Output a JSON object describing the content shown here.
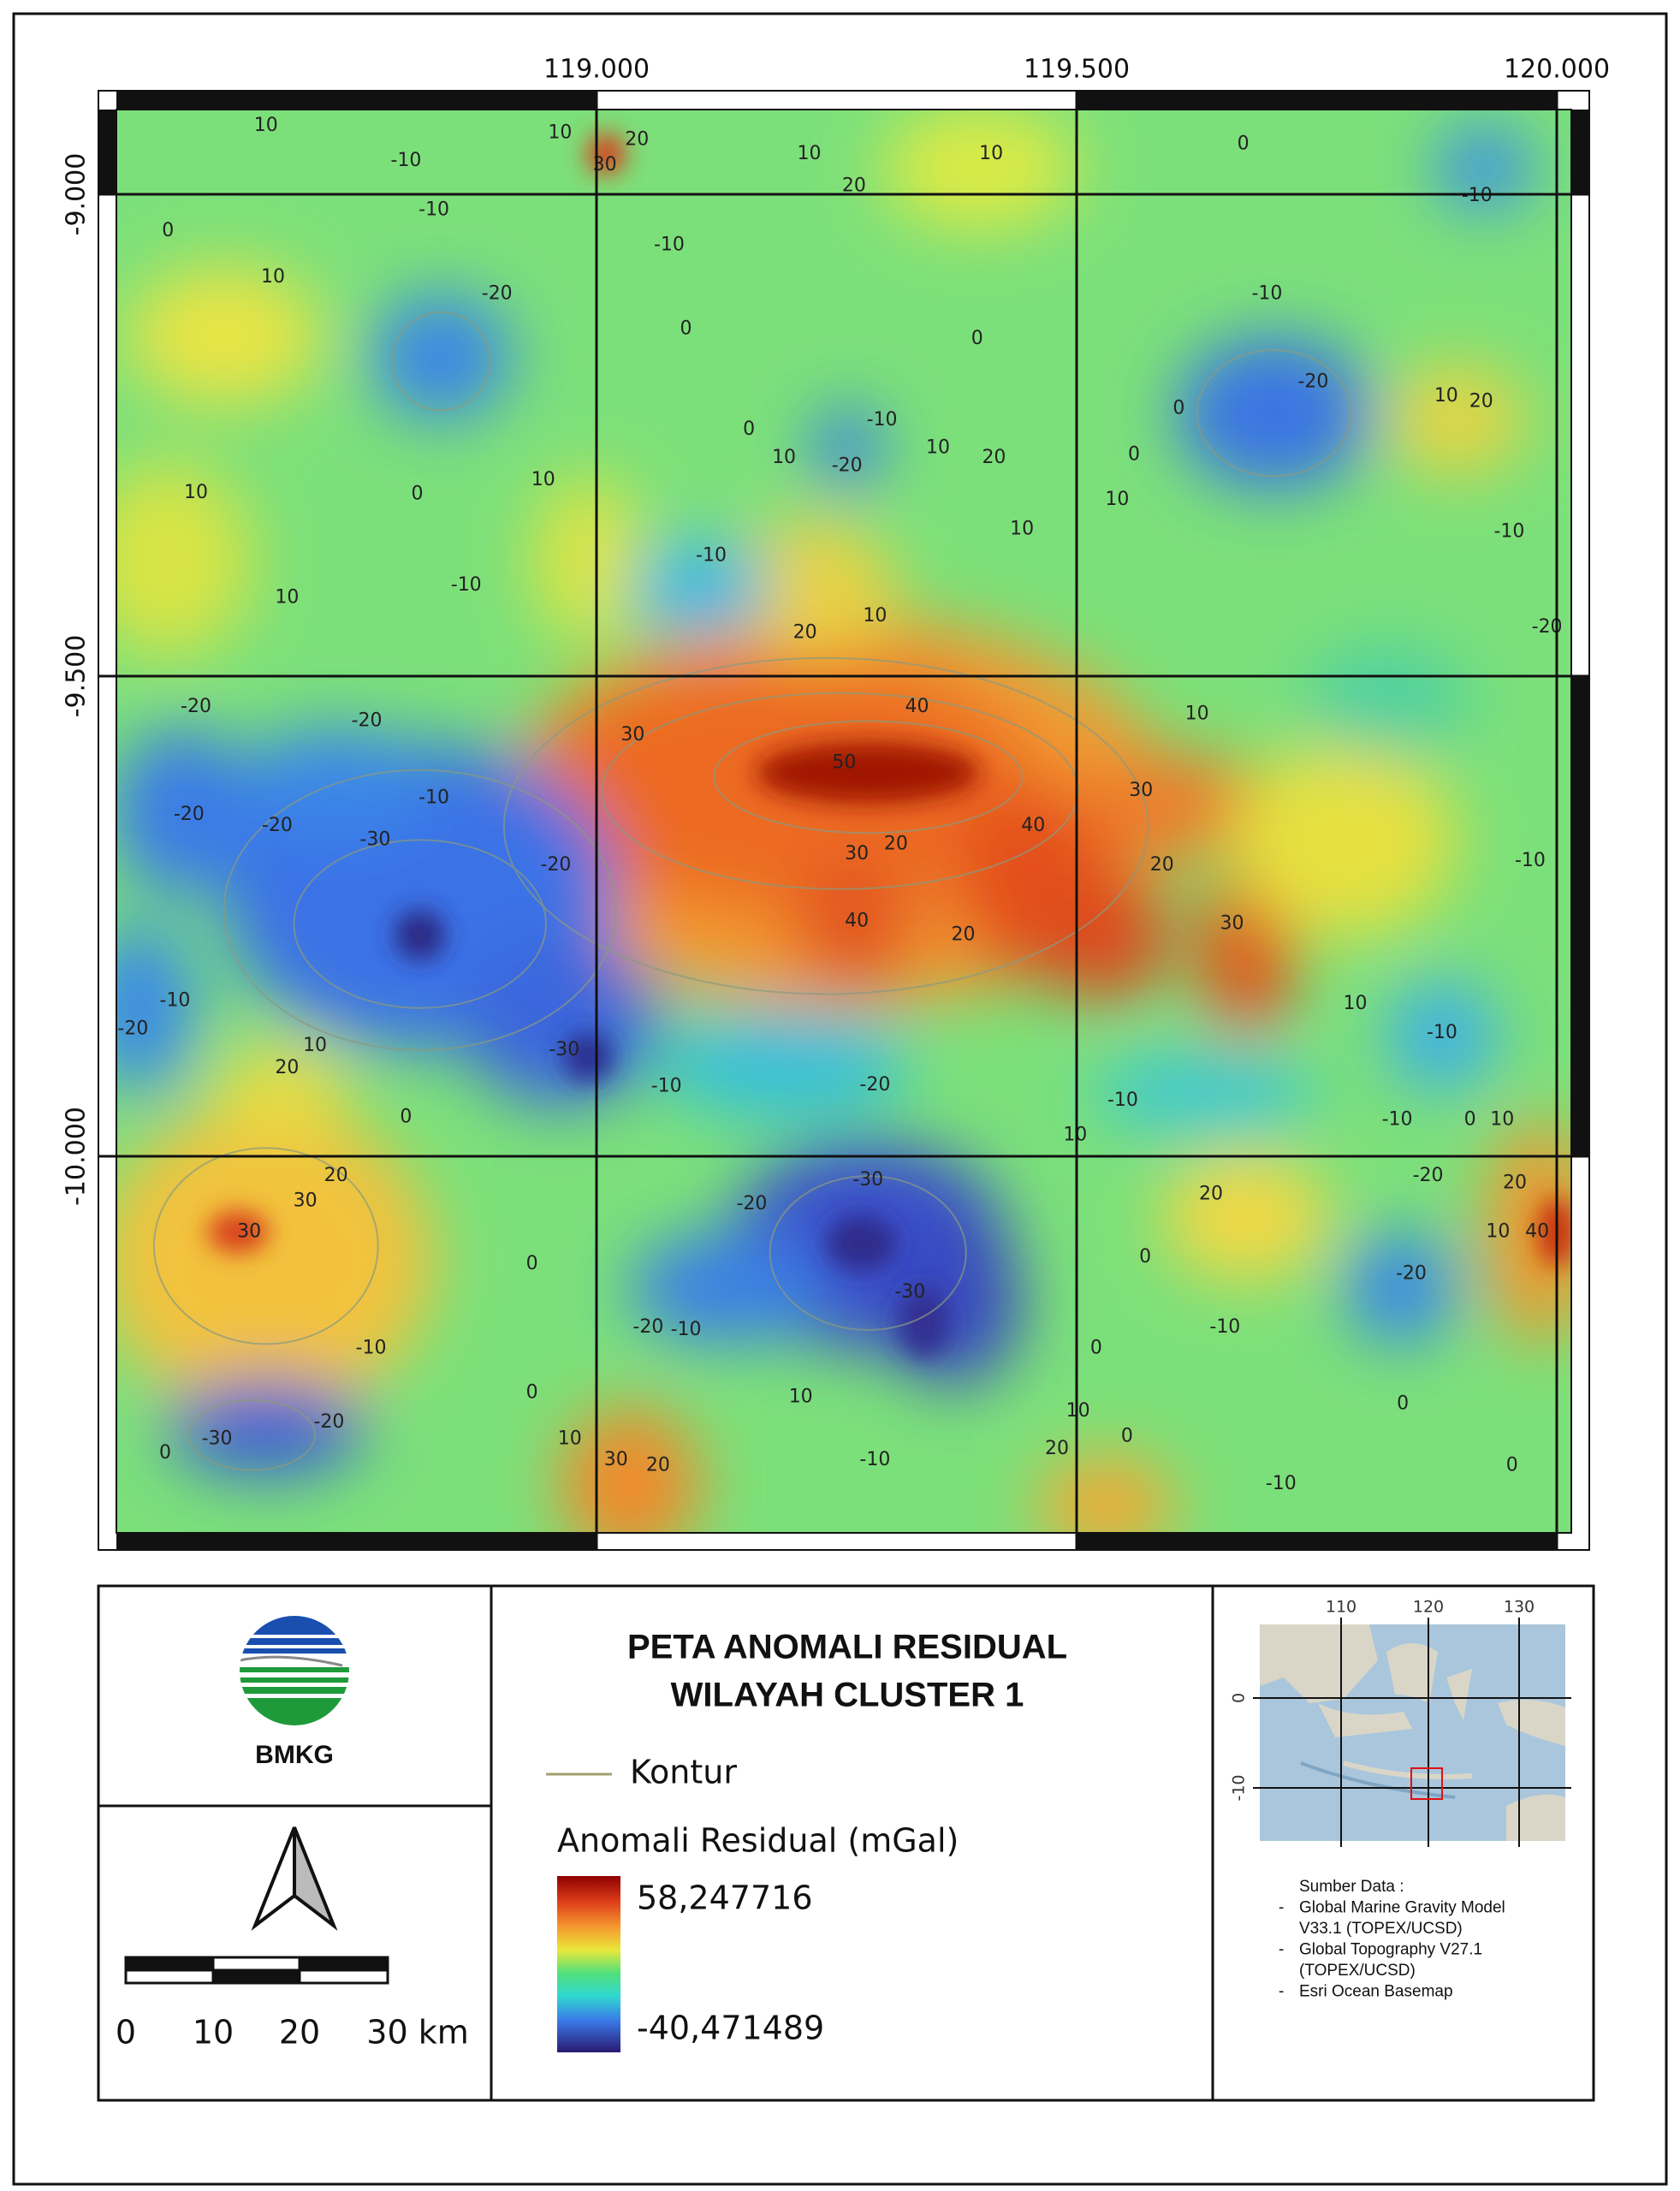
{
  "map": {
    "x_labels": [
      "119.000",
      "119.500",
      "120.000"
    ],
    "y_labels": [
      "-9.000",
      "-9.500",
      "-10.000"
    ],
    "contour_labels": [
      "10",
      "10",
      "20",
      "30",
      "-10",
      "10",
      "10",
      "20",
      "0",
      "-10",
      "-10",
      "0",
      "-10",
      "10",
      "-20",
      "-10",
      "0",
      "0",
      "-20",
      "10",
      "20",
      "-10",
      "-20",
      "10",
      "10",
      "20",
      "0",
      "0",
      "0",
      "10",
      "0",
      "10",
      "10",
      "10",
      "-10",
      "-10",
      "-10",
      "10",
      "10",
      "20",
      "-20",
      "-20",
      "-20",
      "30",
      "40",
      "50",
      "10",
      "30",
      "-10",
      "-20",
      "-20",
      "-30",
      "-20",
      "30",
      "20",
      "40",
      "20",
      "40",
      "20",
      "30",
      "-10",
      "-10",
      "-20",
      "10",
      "20",
      "-30",
      "-10",
      "-20",
      "-10",
      "10",
      "-10",
      "0",
      "10",
      "-10",
      "0",
      "10",
      "20",
      "30",
      "30",
      "-30",
      "-20",
      "20",
      "-20",
      "20",
      "10",
      "40",
      "0",
      "-30",
      "-20",
      "0",
      "-20",
      "-10",
      "-10",
      "0",
      "-10",
      "0",
      "10",
      "0",
      "-30",
      "-20",
      "0",
      "10",
      "30",
      "20",
      "-10",
      "20",
      "10",
      "0",
      "-10",
      "0"
    ]
  },
  "legend": {
    "title_lines": [
      "PETA ANOMALI RESIDUAL",
      "WILAYAH CLUSTER 1"
    ],
    "logo_text": "BMKG",
    "contour_label": "Kontur",
    "colorbar_title": "Anomali Residual (mGal)",
    "colorbar_max": "58,247716",
    "colorbar_min": "-40,471489",
    "scale_labels": [
      "0",
      "10",
      "20",
      "30 km"
    ]
  },
  "inset": {
    "x_labels": [
      "110",
      "120",
      "130"
    ],
    "y_labels": [
      "0",
      "-10"
    ]
  },
  "sources": [
    "Sumber Data :",
    "-",
    "Global Marine Gravity Model",
    "V33.1 (TOPEX/UCSD)",
    "-",
    "Global Topography V27.1",
    "(TOPEX/UCSD)",
    "-",
    "Esri Ocean Basemap"
  ]
}
